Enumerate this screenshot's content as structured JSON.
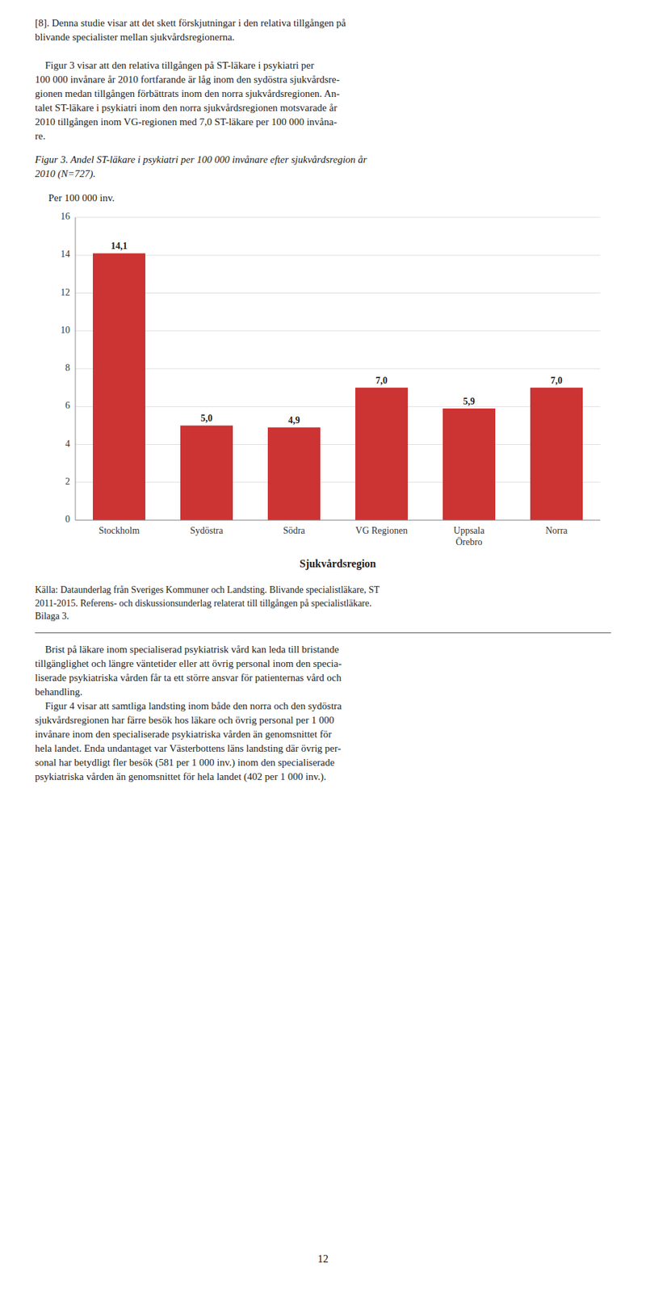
{
  "chart_data": {
    "type": "bar",
    "title": "Figur 3. Andel ST-läkare i psykiatri per 100 000 invånare efter sjukvårdsregion år\n2010 (N=727).",
    "categories": [
      "Stockholm",
      "Sydöstra",
      "Södra",
      "VG Regionen",
      "Uppsala\nÖrebro",
      "Norra"
    ],
    "values": [
      14.1,
      5.0,
      4.9,
      7.0,
      5.9,
      7.0
    ],
    "value_labels": [
      "14,1",
      "5,0",
      "4,9",
      "7,0",
      "5,9",
      "7,0"
    ],
    "data_labels": true,
    "color": "#cc3333",
    "ylabel": "Per 100 000 inv.",
    "xlabel": "Sjukvårdsregion",
    "ylim": [
      0,
      16
    ],
    "yticks": [
      0,
      2,
      4,
      6,
      8,
      10,
      12,
      14,
      16
    ],
    "grid": true,
    "source": "Källa: Dataunderlag från Sveriges Kommuner och Landsting. Blivande specialistläkare, ST\n2011-2015. Referens- och diskussionsunderlag relaterat till tillgången på specialistläkare.\nBilaga 3."
  },
  "intro_text": "[8]. Denna studie visar att det skett förskjutningar i den relativa tillgången på\nblivande specialister mellan sjukvårdsregionerna.\n\n    Figur 3 visar att den relativa tillgången på ST-läkare i psykiatri per\n100 000 invånare år 2010 fortfarande är låg inom den sydöstra sjukvårdsre-\ngionen medan tillgången förbättrats inom den norra sjukvårdsregionen. An-\ntalet ST-läkare i psykiatri inom den norra sjukvårdsregionen motsvarade år\n2010 tillgången inom VG-regionen med 7,0 ST-läkare per 100 000 invåna-\nre.",
  "body_text": "    Brist på läkare inom specialiserad psykiatrisk vård kan leda till bristande\ntillgänglighet och längre väntetider eller att övrig personal inom den specia-\nliserade psykiatriska vården får ta ett större ansvar för patienternas vård och\nbehandling.\n    Figur 4 visar att samtliga landsting inom både den norra och den sydöstra\nsjukvårdsregionen har färre besök hos läkare och övrig personal per 1 000\ninvånare inom den specialiserade psykiatriska vården än genomsnittet för\nhela landet. Enda undantaget var Västerbottens läns landsting där övrig per-\nsonal har betydligt fler besök (581 per 1 000 inv.) inom den specialiserade\npsykiatriska vården än genomsnittet för hela landet (402 per 1 000 inv.).",
  "page_number": "12"
}
